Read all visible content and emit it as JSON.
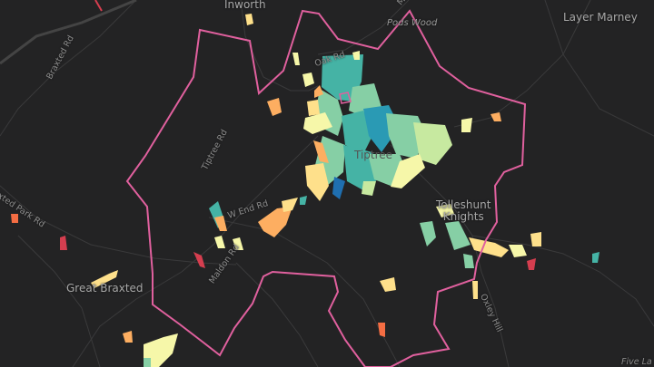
{
  "map": {
    "places": {
      "inworth": "Inworth",
      "layer_marney": "Layer Marney",
      "tiptree": "Tiptree",
      "tolleshunt_knights": "Tolleshunt\nKnights",
      "great_braxted": "Great Braxted"
    },
    "features": {
      "pods_wood": "Pods Wood"
    },
    "roads": {
      "braxted_rd": "Braxted Rd",
      "oak_rd": "Oak Rd",
      "tiptree_rd": "Tiptree Rd",
      "w_end_rd": "W End Rd",
      "braxted_park_rd": "Braxted Park Rd",
      "maldon_rd": "Maldon Rd",
      "oxley_hill": "Oxley Hill",
      "five_la": "Five La",
      "top_partial": "M"
    },
    "colors": {
      "boundary": "#e0609e",
      "background": "#232324",
      "scale": [
        "#d53e4f",
        "#f46d43",
        "#fdae61",
        "#fee08b",
        "#f6f7a9",
        "#c7e9a0",
        "#86cfa5",
        "#45b3a5",
        "#2a9ab4",
        "#1f6fb0"
      ]
    }
  }
}
